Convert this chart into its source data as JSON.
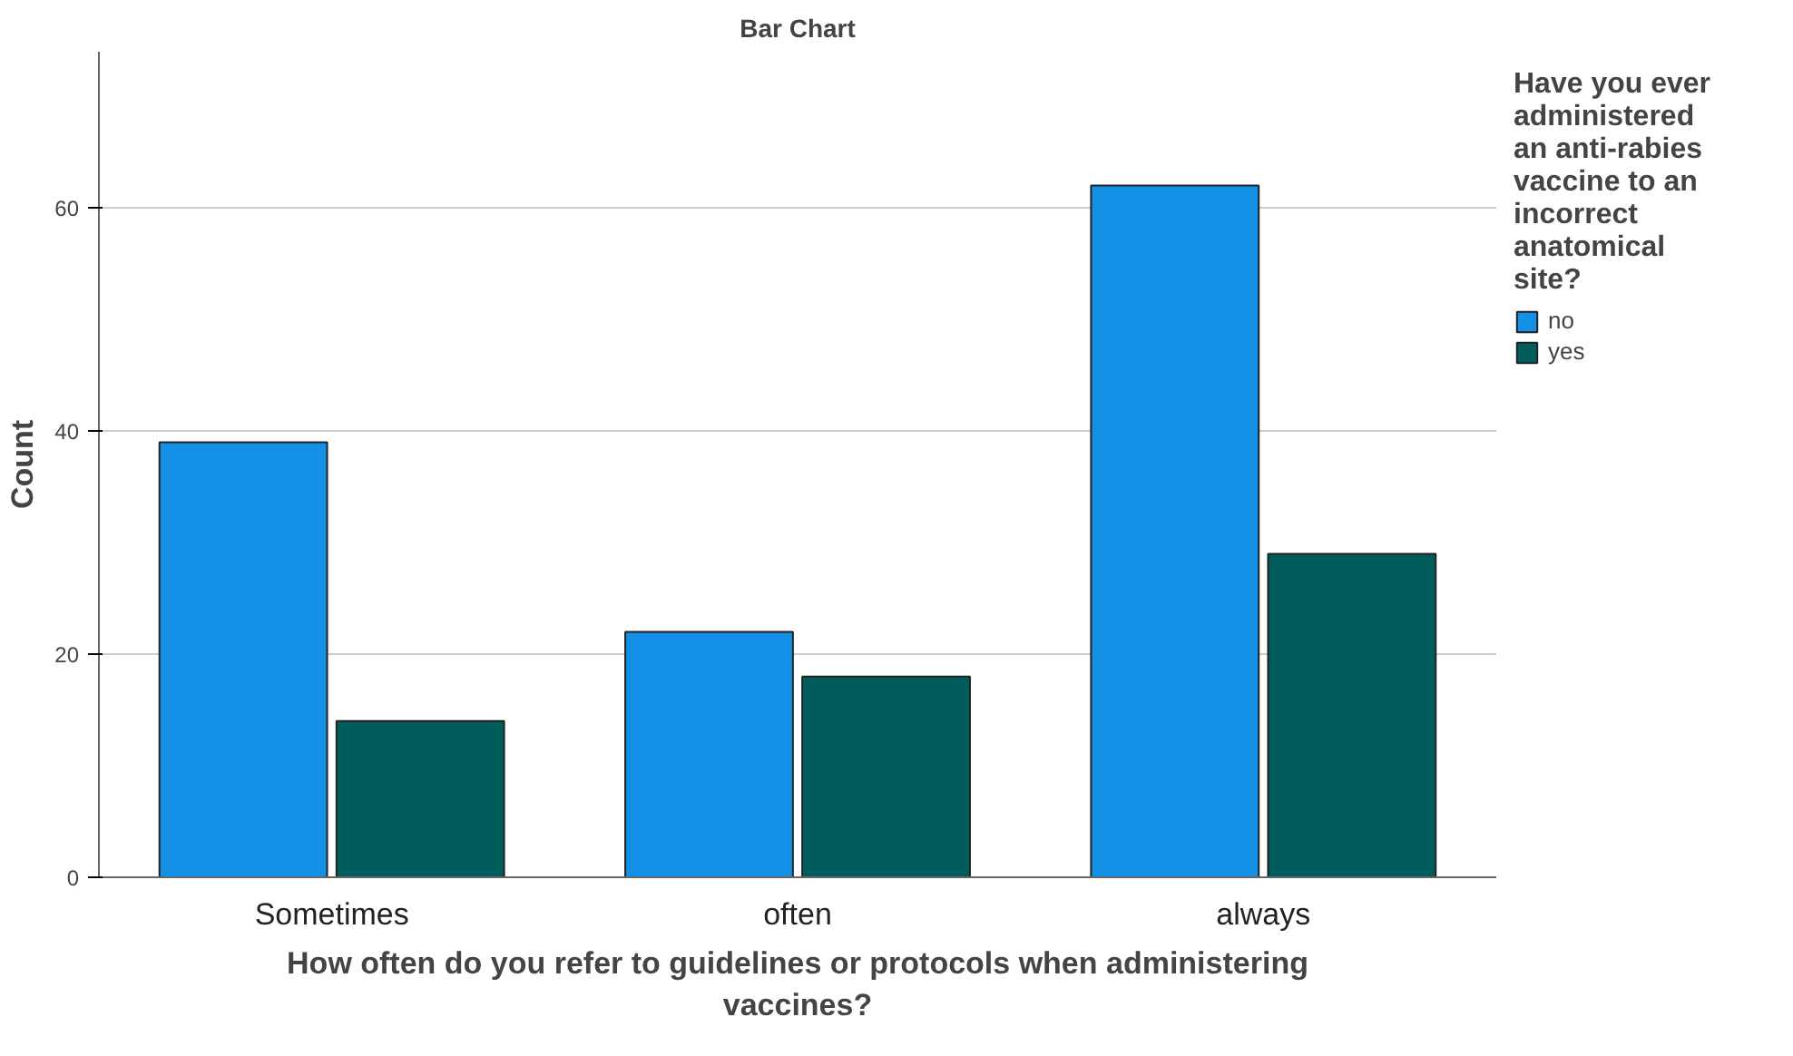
{
  "chart_data": {
    "type": "bar",
    "title": "Bar Chart",
    "categories": [
      "Sometimes",
      "often",
      "always"
    ],
    "series": [
      {
        "name": "no",
        "color": "#1490e6",
        "values": [
          39,
          22,
          62
        ]
      },
      {
        "name": "yes",
        "color": "#005d5b",
        "values": [
          14,
          18,
          29
        ]
      }
    ],
    "xlabel": "How often do you refer to guidelines or protocols when administering vaccines?",
    "ylabel": "Count",
    "legend_title": "Have you ever administered an anti-rabies vaccine to an incorrect anatomical site?",
    "ylim": [
      0,
      74
    ],
    "yticks": [
      0,
      20,
      40,
      60
    ],
    "grid": "y",
    "legend": "right"
  }
}
